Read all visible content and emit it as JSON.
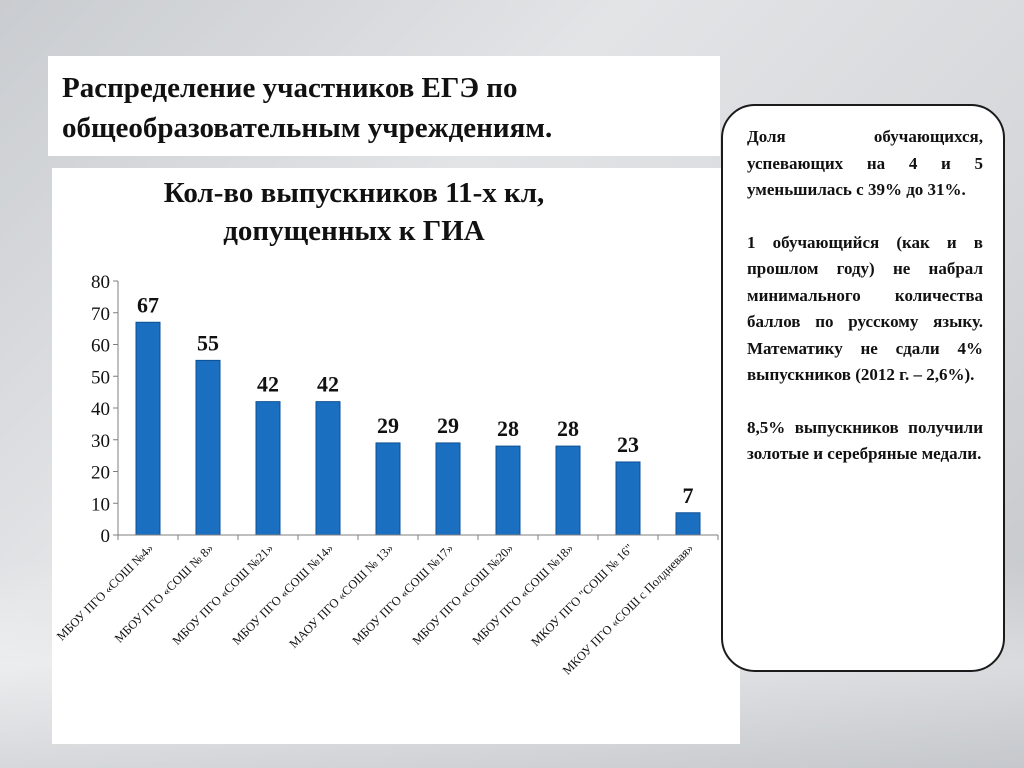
{
  "slide": {
    "title": "Распределение участников ЕГЭ по общеобразовательным учреждениям."
  },
  "notes": [
    "Доля обучающихся, успевающих на 4 и 5 уменьшилась с 39% до 31%.",
    "1 обучающийся (как и в прошлом году) не набрал минимального количества баллов по русскому языку. Математику не сдали 4% выпускников (2012 г. – 2,6%).",
    "8,5% выпускников получили золотые и серебряные медали."
  ],
  "chart_data": {
    "type": "bar",
    "title": "Кол-во выпускников 11-х кл, допущенных к ГИА",
    "xlabel": "",
    "ylabel": "",
    "ylim": [
      0,
      80
    ],
    "yticks": [
      0,
      10,
      20,
      30,
      40,
      50,
      60,
      70,
      80
    ],
    "categories": [
      "МБОУ ПГО «СОШ №4»",
      "МБОУ ПГО «СОШ № 8»",
      "МБОУ ПГО «СОШ №21»",
      "МБОУ ПГО «СОШ №14»",
      "МАОУ ПГО «СОШ № 13»",
      "МБОУ ПГО «СОШ №17»",
      "МБОУ ПГО «СОШ №20»",
      "МБОУ ПГО «СОШ №18»",
      "МКОУ ПГО \"СОШ № 16\"",
      "МКОУ ПГО «СОШ с Полдневая»"
    ],
    "values": [
      67,
      55,
      42,
      42,
      29,
      29,
      28,
      28,
      23,
      7
    ],
    "data_labels": true,
    "grid": false,
    "legend": "none",
    "bar_color": "#1a6fc0"
  }
}
